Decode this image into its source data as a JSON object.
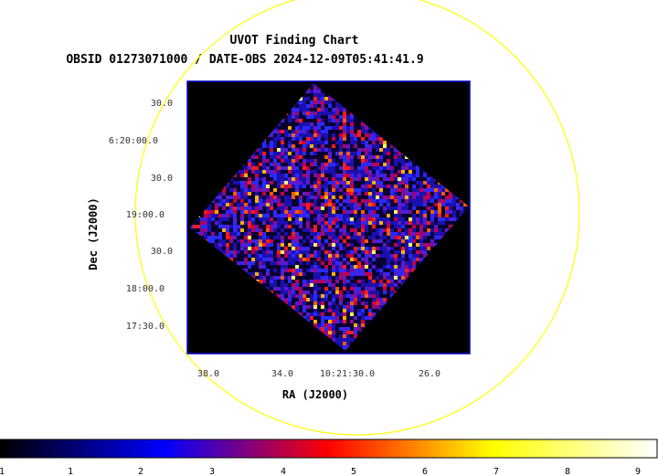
{
  "chart_data": {
    "type": "heatmap",
    "title": "UVOT Finding Chart",
    "subtitle": "OBSID 01273071000 / DATE-OBS 2024-12-09T05:41:41.9",
    "xlabel": "RA (J2000)",
    "ylabel": "Dec (J2000)",
    "x_ticks": [
      "38.0",
      "34.0",
      "10:21:30.0",
      "26.0"
    ],
    "y_ticks": [
      "30.0",
      "6:20:00.0",
      "30.0",
      "19:00.0",
      "30.0",
      "18:00.0",
      "17:30.0"
    ],
    "colorbar": {
      "ticks": [
        "1",
        "1",
        "2",
        "3",
        "4",
        "5",
        "6",
        "7",
        "8",
        "9"
      ],
      "colormap": "heat",
      "stops": [
        "#000000",
        "#0000ff",
        "#ff0000",
        "#ffff00",
        "#ffffff"
      ]
    },
    "grid": false,
    "overlay": "circle",
    "colors": {
      "frame": "#0000cc",
      "overlay_circle": "#ffff00",
      "image_bg": "#000000"
    }
  }
}
